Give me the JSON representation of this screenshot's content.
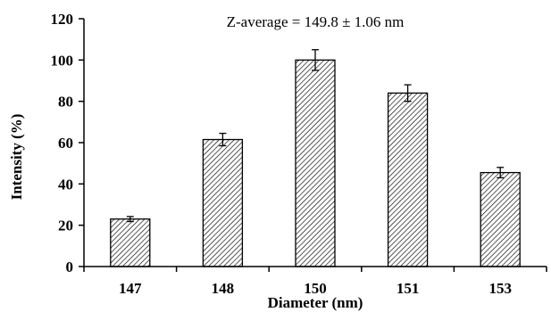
{
  "chart_data": {
    "type": "bar",
    "categories": [
      "147",
      "148",
      "150",
      "151",
      "153"
    ],
    "values": [
      23,
      61.5,
      100,
      84,
      45.5
    ],
    "errors": [
      1.2,
      3.0,
      5.0,
      4.0,
      2.5
    ],
    "xlabel": "Diameter (nm)",
    "ylabel": "Intensity  (%)",
    "ylim": [
      0,
      120
    ],
    "yticks": [
      0,
      20,
      40,
      60,
      80,
      100,
      120
    ],
    "annotation": "Z-average = 149.8 ± 1.06 nm",
    "grid": false,
    "bar_fill": "hatched",
    "bar_color": "#000000"
  }
}
